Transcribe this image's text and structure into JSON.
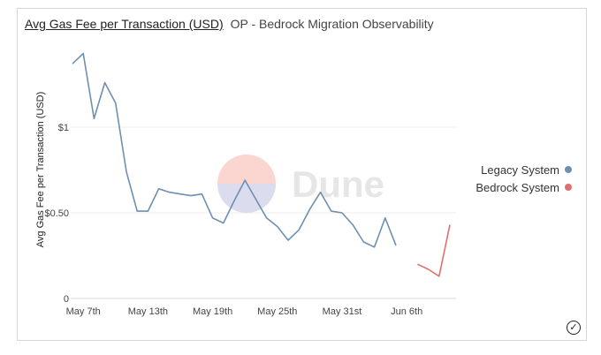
{
  "header": {
    "title": "Avg Gas Fee per Transaction (USD)",
    "subtitle": "OP - Bedrock Migration Observability"
  },
  "watermark": "Dune",
  "icons": {
    "verified": "check-circle-icon"
  },
  "colors": {
    "legacy": "#6f8fb0",
    "bedrock": "#e07070",
    "grid": "#eeeeee"
  },
  "legend": [
    {
      "label": "Legacy System",
      "color": "#6f8fb0"
    },
    {
      "label": "Bedrock System",
      "color": "#e07070"
    }
  ],
  "chart_data": {
    "type": "line",
    "title": "Avg Gas Fee per Transaction (USD)",
    "ylabel": "Avg Gas Fee per Transaction (USD)",
    "xlabel": "",
    "ylim": [
      0,
      1.5
    ],
    "yticks": [
      {
        "value": 0,
        "label": "0"
      },
      {
        "value": 0.5,
        "label": "$0.50"
      },
      {
        "value": 1,
        "label": "$1"
      }
    ],
    "xticks": [
      {
        "day": 0,
        "label": "May 7th"
      },
      {
        "day": 6,
        "label": "May 13th"
      },
      {
        "day": 12,
        "label": "May 19th"
      },
      {
        "day": 18,
        "label": "May 25th"
      },
      {
        "day": 24,
        "label": "May 31st"
      },
      {
        "day": 30,
        "label": "Jun 6th"
      }
    ],
    "legend_position": "right",
    "grid": true,
    "series": [
      {
        "name": "Legacy System",
        "color": "#6f8fb0",
        "x": [
          "May 6",
          "May 7",
          "May 8",
          "May 9",
          "May 10",
          "May 11",
          "May 12",
          "May 13",
          "May 14",
          "May 15",
          "May 16",
          "May 17",
          "May 18",
          "May 19",
          "May 20",
          "May 21",
          "May 22",
          "May 23",
          "May 24",
          "May 25",
          "May 26",
          "May 27",
          "May 28",
          "May 29",
          "May 30",
          "May 31",
          "Jun 1",
          "Jun 2",
          "Jun 3",
          "Jun 4",
          "Jun 5",
          "Jun 6"
        ],
        "values": [
          1.37,
          1.43,
          1.05,
          1.26,
          1.14,
          0.74,
          0.51,
          0.51,
          0.64,
          0.62,
          0.61,
          0.6,
          0.61,
          0.47,
          0.44,
          0.57,
          0.69,
          0.58,
          0.47,
          0.42,
          0.34,
          0.4,
          0.52,
          0.62,
          0.51,
          0.5,
          0.43,
          0.33,
          0.3,
          0.47,
          0.31,
          null
        ]
      },
      {
        "name": "Bedrock System",
        "color": "#e07070",
        "x": [
          "Jun 7",
          "Jun 8",
          "Jun 9",
          "Jun 10"
        ],
        "values": [
          0.2,
          0.17,
          0.13,
          0.43
        ]
      }
    ]
  }
}
